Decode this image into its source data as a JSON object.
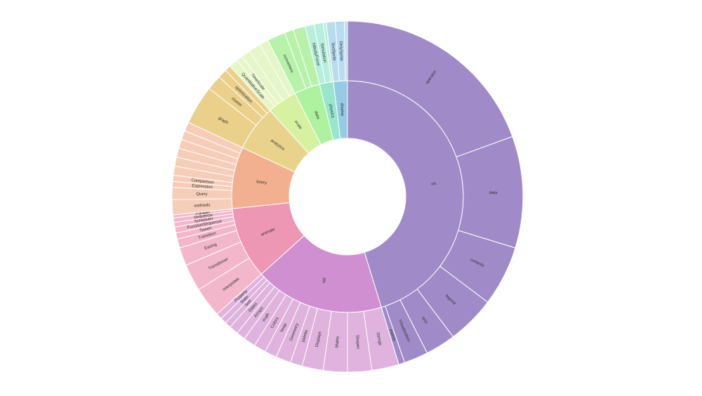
{
  "chart_data": {
    "type": "sunburst",
    "nodes": [
      {
        "name": "vis",
        "value": 163,
        "color": "#a08bc8",
        "outer_color": "#a08bc8",
        "children": [
          {
            "name": "operator",
            "value": 70
          },
          {
            "name": "data",
            "value": 37
          },
          {
            "name": "controls",
            "value": 20
          },
          {
            "name": "legend",
            "value": 16
          },
          {
            "name": "axis",
            "value": 10
          },
          {
            "name": "Visualization",
            "value": 8
          },
          {
            "name": "events",
            "value": 2
          }
        ]
      },
      {
        "name": "util",
        "value": 65,
        "color": "#d08fd0",
        "outer_color": "#dfb3dd",
        "children": [
          {
            "name": "Strings",
            "value": 9
          },
          {
            "name": "Shapes",
            "value": 8
          },
          {
            "name": "Maths",
            "value": 8
          },
          {
            "name": "Displays",
            "value": 7
          },
          {
            "name": "palette",
            "value": 4
          },
          {
            "name": "Geometry",
            "value": 5
          },
          {
            "name": "heap",
            "value": 4
          },
          {
            "name": "Colors",
            "value": 4
          },
          {
            "name": "math",
            "value": 4
          },
          {
            "name": "Arrays",
            "value": 3
          },
          {
            "name": "Dates",
            "value": 3
          },
          {
            "name": "Sort",
            "value": 2
          },
          {
            "name": "Stats",
            "value": 2
          },
          {
            "name": "Property",
            "value": 2
          }
        ]
      },
      {
        "name": "animate",
        "value": 36,
        "color": "#ee97b4",
        "outer_color": "#f3b7cb",
        "children": [
          {
            "name": "interpolate",
            "value": 10
          },
          {
            "name": "Transitioner",
            "value": 9
          },
          {
            "name": "Easing",
            "value": 6
          },
          {
            "name": "Transition",
            "value": 3
          },
          {
            "name": "Tween",
            "value": 2
          },
          {
            "name": "FunctionSequence",
            "value": 2
          },
          {
            "name": "Scheduler",
            "value": 1.5
          },
          {
            "name": "Sequence",
            "value": 1.5
          },
          {
            "name": "Parallel",
            "value": 1
          }
        ]
      },
      {
        "name": "query",
        "value": 31,
        "color": "#f2b090",
        "outer_color": "#f6cdb8",
        "children": [
          {
            "name": "methods",
            "value": 5
          },
          {
            "name": "Query",
            "value": 4
          },
          {
            "name": "Expression",
            "value": 2
          },
          {
            "name": "Comparison",
            "value": 2
          },
          {
            "name": null,
            "value": 3
          },
          {
            "name": null,
            "value": 3
          },
          {
            "name": null,
            "value": 3
          },
          {
            "name": null,
            "value": 3
          },
          {
            "name": null,
            "value": 3
          },
          {
            "name": null,
            "value": 3
          }
        ]
      },
      {
        "name": "analytics",
        "value": 23,
        "color": "#e9d38c",
        "outer_color": "#ead08a",
        "children": [
          {
            "name": "graph",
            "value": 13
          },
          {
            "name": "cluster",
            "value": 5
          },
          {
            "name": "optimization",
            "value": 3
          },
          {
            "name": null,
            "value": 2
          }
        ]
      },
      {
        "name": "scale",
        "value": 15,
        "color": "#d6f2a0",
        "outer_color": "#e6f6c8",
        "children": [
          {
            "name": "QuantitativeScale",
            "value": 3
          },
          {
            "name": "TimeScale",
            "value": 2
          },
          {
            "name": null,
            "value": 3
          },
          {
            "name": null,
            "value": 4
          },
          {
            "name": null,
            "value": 3
          }
        ]
      },
      {
        "name": "data",
        "value": 13,
        "color": "#aef2a0",
        "outer_color": "#b8f2aa",
        "children": [
          {
            "name": "converters",
            "value": 6
          },
          {
            "name": null,
            "value": 3
          },
          {
            "name": null,
            "value": 4
          }
        ]
      },
      {
        "name": "physics",
        "value": 7,
        "color": "#98e6cc",
        "outer_color": "#b8eedc",
        "children": [
          {
            "name": "NBodyForce",
            "value": 3
          },
          {
            "name": "Simulation",
            "value": 3
          },
          {
            "name": null,
            "value": 1
          }
        ]
      },
      {
        "name": "display",
        "value": 7,
        "color": "#96cbe6",
        "outer_color": "#b8dcef",
        "children": [
          {
            "name": "TextSprite",
            "value": 3
          },
          {
            "name": "DirtySprite",
            "value": 3
          },
          {
            "name": null,
            "value": 1
          }
        ]
      }
    ]
  }
}
